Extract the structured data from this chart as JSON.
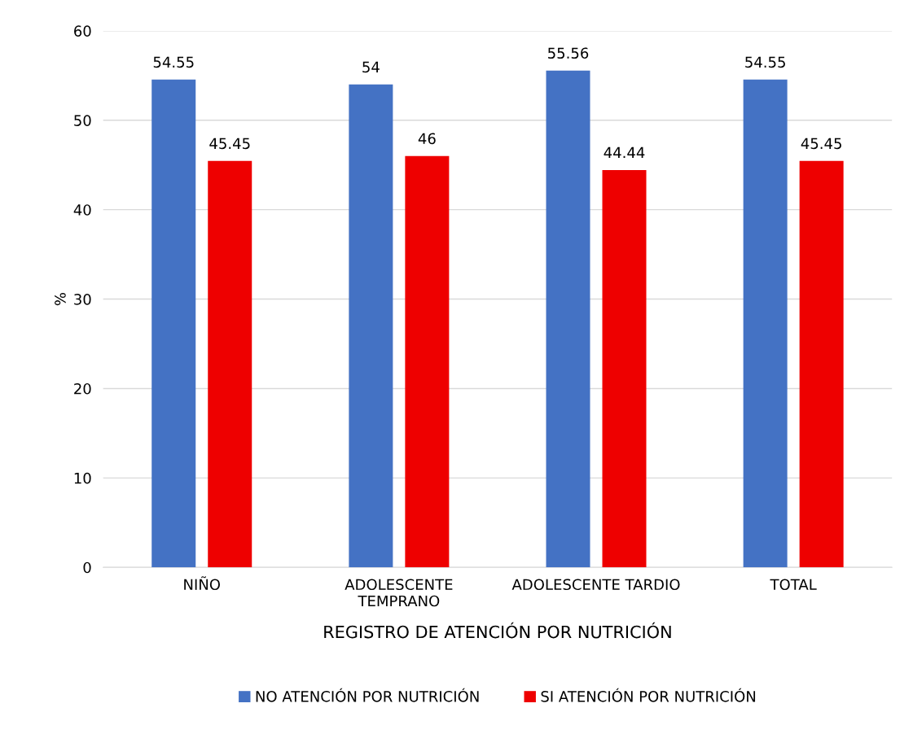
{
  "chart_data": {
    "type": "bar",
    "xlabel": "REGISTRO DE ATENCIÓN POR NUTRICIÓN",
    "ylabel": "%",
    "categories": [
      "NIÑO",
      "ADOLESCENTE\nTEMPRANO",
      "ADOLESCENTE TARDIO",
      "TOTAL"
    ],
    "series": [
      {
        "name": "NO ATENCIÓN POR NUTRICIÓN",
        "color": "#4472c4",
        "values": [
          54.55,
          54,
          55.56,
          54.55
        ]
      },
      {
        "name": "SI ATENCIÓN POR NUTRICIÓN",
        "color": "#ee0000",
        "values": [
          45.45,
          46,
          44.44,
          45.45
        ]
      }
    ],
    "ylim": [
      0,
      60
    ],
    "yticks": [
      0,
      10,
      20,
      30,
      40,
      50,
      60
    ],
    "grid": "y",
    "legend": "bottom",
    "data_labels": true
  }
}
